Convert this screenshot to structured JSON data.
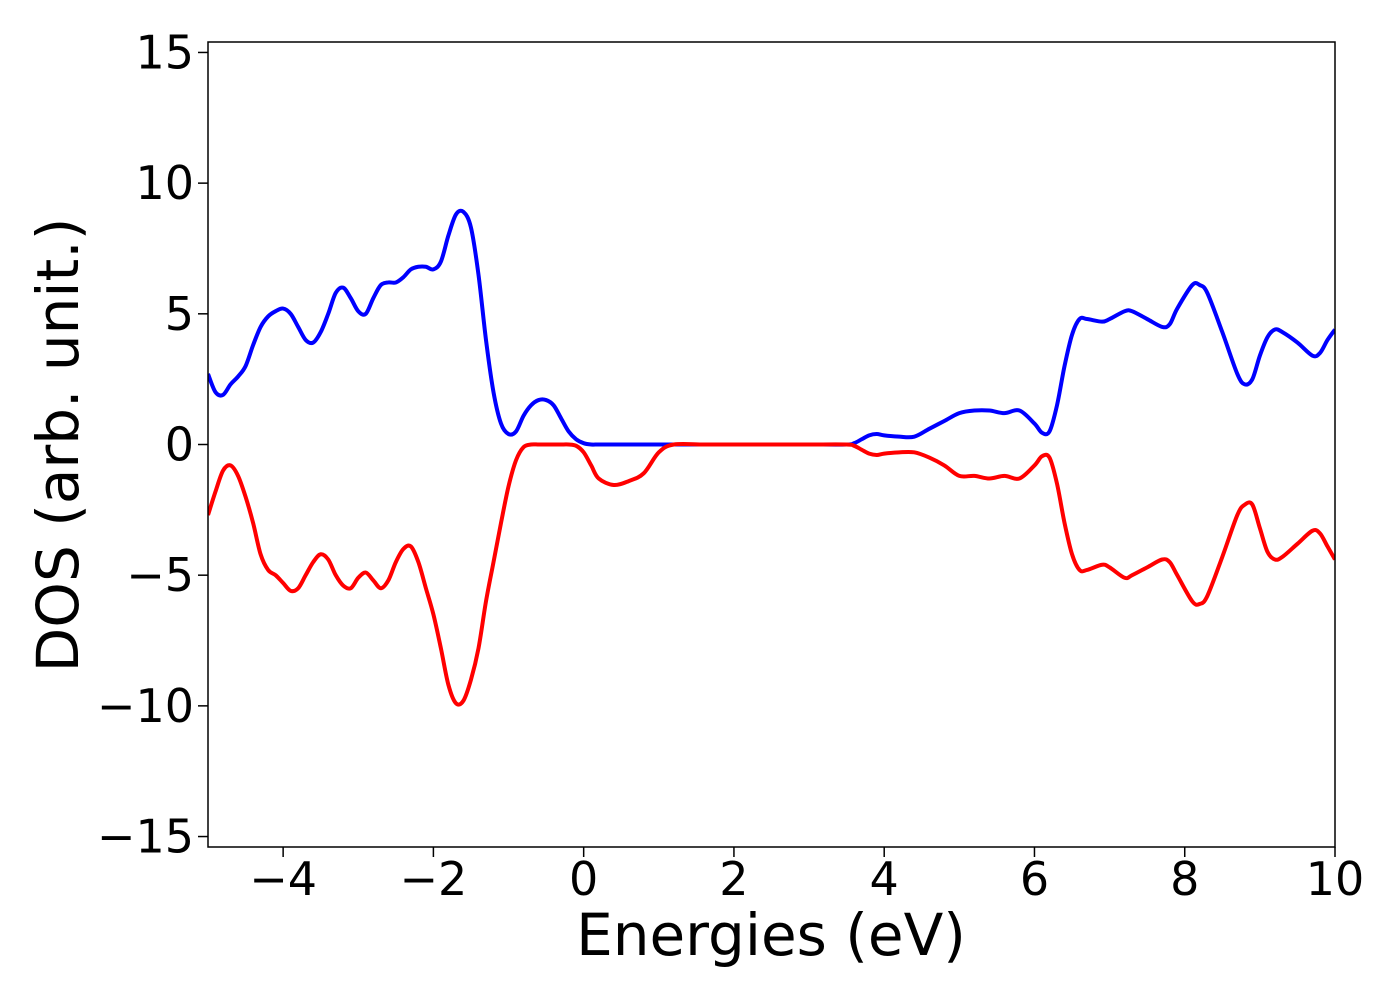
{
  "chart_data": {
    "type": "line",
    "xlabel": "Energies (eV)",
    "ylabel": "DOS (arb. unit.)",
    "x": [
      -5,
      -4.9,
      -4.8,
      -4.7,
      -4.6,
      -4.5,
      -4.4,
      -4.3,
      -4.2,
      -4.1,
      -4,
      -3.9,
      -3.8,
      -3.7,
      -3.6,
      -3.5,
      -3.4,
      -3.3,
      -3.2,
      -3.1,
      -3,
      -2.9,
      -2.8,
      -2.7,
      -2.6,
      -2.5,
      -2.4,
      -2.3,
      -2.2,
      -2.1,
      -2,
      -1.9,
      -1.8,
      -1.7,
      -1.6,
      -1.5,
      -1.4,
      -1.3,
      -1.2,
      -1.1,
      -1,
      -0.9,
      -0.8,
      -0.7,
      -0.6,
      -0.5,
      -0.4,
      -0.3,
      -0.2,
      -0.1,
      0,
      0.1,
      0.2,
      0.4,
      0.6,
      0.8,
      1,
      1.2,
      1.6,
      2,
      2.5,
      3,
      3.5,
      3.6,
      3.7,
      3.8,
      3.9,
      4,
      4.2,
      4.4,
      4.6,
      4.8,
      5,
      5.2,
      5.4,
      5.6,
      5.8,
      6,
      6.1,
      6.2,
      6.3,
      6.4,
      6.5,
      6.6,
      6.7,
      6.9,
      7,
      7.2,
      7.3,
      7.5,
      7.7,
      7.8,
      7.9,
      8.1,
      8.2,
      8.3,
      8.5,
      8.7,
      8.8,
      8.9,
      9,
      9.1,
      9.2,
      9.3,
      9.5,
      9.7,
      9.8,
      9.9,
      10
    ],
    "series": [
      {
        "color": "#0000ff",
        "values": [
          2.7,
          2.0,
          1.9,
          2.3,
          2.6,
          3.0,
          3.8,
          4.5,
          4.9,
          5.1,
          5.2,
          5.0,
          4.5,
          4.0,
          3.9,
          4.3,
          5.0,
          5.8,
          6.0,
          5.6,
          5.1,
          5.0,
          5.6,
          6.1,
          6.2,
          6.2,
          6.4,
          6.7,
          6.8,
          6.8,
          6.7,
          7.0,
          8.0,
          8.8,
          8.9,
          8.3,
          6.5,
          4.0,
          2.0,
          0.8,
          0.4,
          0.5,
          1.1,
          1.5,
          1.7,
          1.7,
          1.5,
          1.0,
          0.5,
          0.2,
          0.05,
          0,
          0,
          0,
          0,
          0,
          0,
          0,
          0,
          0,
          0,
          0,
          0,
          0.05,
          0.2,
          0.35,
          0.4,
          0.35,
          0.3,
          0.3,
          0.6,
          0.9,
          1.2,
          1.3,
          1.3,
          1.2,
          1.3,
          0.8,
          0.45,
          0.5,
          1.5,
          3.0,
          4.2,
          4.8,
          4.8,
          4.7,
          4.8,
          5.1,
          5.1,
          4.8,
          4.5,
          4.6,
          5.2,
          6.1,
          6.1,
          5.8,
          4.3,
          2.7,
          2.3,
          2.5,
          3.4,
          4.1,
          4.4,
          4.3,
          3.9,
          3.4,
          3.5,
          4.0,
          4.4
        ]
      },
      {
        "color": "#ff0000",
        "values": [
          -2.7,
          -1.8,
          -1.0,
          -0.8,
          -1.2,
          -2.0,
          -3.0,
          -4.2,
          -4.8,
          -5.0,
          -5.3,
          -5.6,
          -5.5,
          -5.0,
          -4.5,
          -4.2,
          -4.4,
          -5.0,
          -5.4,
          -5.5,
          -5.1,
          -4.9,
          -5.2,
          -5.5,
          -5.2,
          -4.5,
          -4.0,
          -3.9,
          -4.5,
          -5.5,
          -6.5,
          -7.8,
          -9.2,
          -9.9,
          -9.8,
          -9.0,
          -7.8,
          -6.0,
          -4.5,
          -3.0,
          -1.6,
          -0.6,
          -0.1,
          0,
          0,
          0,
          0,
          0,
          0,
          -0.05,
          -0.3,
          -0.8,
          -1.3,
          -1.55,
          -1.4,
          -1.1,
          -0.3,
          0,
          0,
          0,
          0,
          0,
          0,
          -0.05,
          -0.2,
          -0.35,
          -0.4,
          -0.35,
          -0.3,
          -0.3,
          -0.5,
          -0.8,
          -1.2,
          -1.2,
          -1.3,
          -1.2,
          -1.3,
          -0.8,
          -0.45,
          -0.5,
          -1.5,
          -3.0,
          -4.2,
          -4.8,
          -4.8,
          -4.6,
          -4.7,
          -5.1,
          -5.0,
          -4.7,
          -4.4,
          -4.5,
          -5.0,
          -6.0,
          -6.1,
          -5.8,
          -4.3,
          -2.7,
          -2.3,
          -2.3,
          -3.2,
          -4.1,
          -4.4,
          -4.3,
          -3.8,
          -3.3,
          -3.4,
          -3.9,
          -4.4
        ]
      }
    ],
    "xlim": [
      -5,
      10
    ],
    "xticks": [
      {
        "value": -4,
        "label": "−4"
      },
      {
        "value": -2,
        "label": "−2"
      },
      0,
      2,
      4,
      6,
      8,
      10
    ],
    "ylim": [
      -15.4,
      15.4
    ],
    "yticks": [
      {
        "value": -15,
        "label": "−15"
      },
      {
        "value": -10,
        "label": "−10"
      },
      {
        "value": -5,
        "label": "−5"
      },
      0,
      5,
      10,
      15
    ],
    "grid": false
  }
}
